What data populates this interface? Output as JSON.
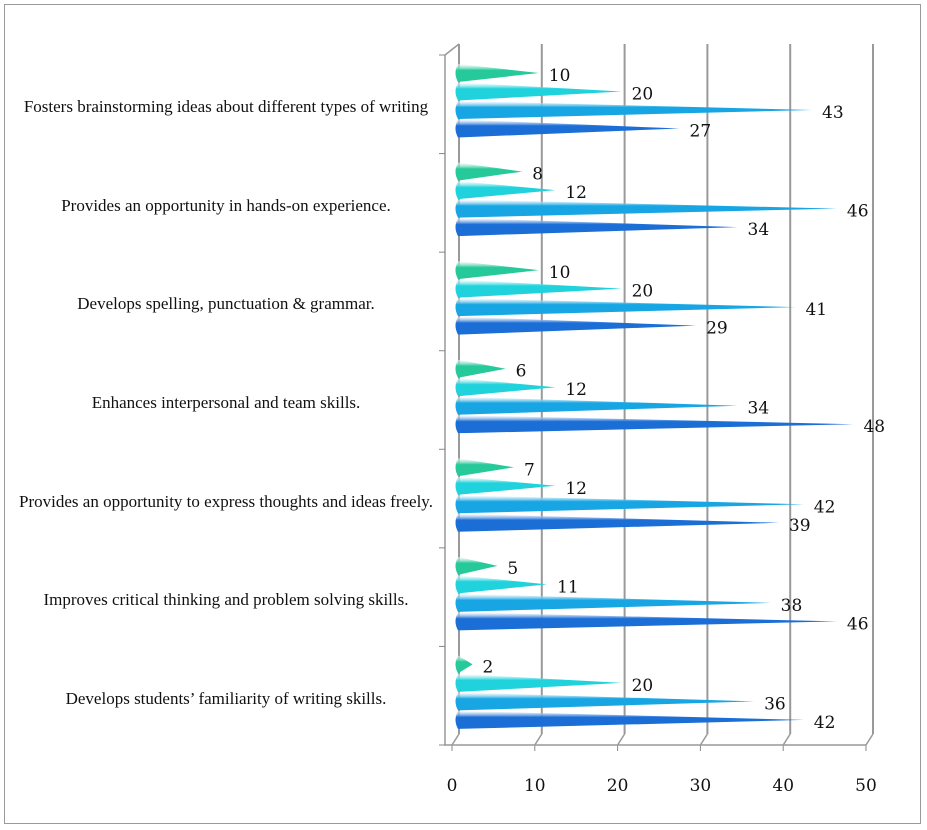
{
  "chart_data": {
    "type": "bar",
    "orientation": "horizontal",
    "style": "3d-cone",
    "categories": [
      "Fosters brainstorming ideas about different types of writing",
      "Provides an opportunity in hands-on experience.",
      "Develops spelling, punctuation & grammar.",
      "Enhances interpersonal and team skills.",
      "Provides an opportunity to express thoughts and ideas freely.",
      "Improves critical thinking and problem solving skills.",
      "Develops students’ familiarity of writing skills."
    ],
    "series": [
      {
        "color": "#25c99a",
        "values": [
          10,
          8,
          10,
          6,
          7,
          5,
          2
        ]
      },
      {
        "color": "#1fd2dc",
        "values": [
          20,
          12,
          20,
          12,
          12,
          11,
          20
        ]
      },
      {
        "color": "#17a6e3",
        "values": [
          43,
          46,
          41,
          34,
          42,
          38,
          36
        ]
      },
      {
        "color": "#1a6ed6",
        "values": [
          27,
          34,
          29,
          48,
          39,
          46,
          42
        ]
      }
    ],
    "xlim": [
      0,
      50
    ],
    "xticks": [
      "0",
      "10",
      "20",
      "30",
      "40",
      "50"
    ],
    "grid": true,
    "legend": "none",
    "data_labels": true
  }
}
